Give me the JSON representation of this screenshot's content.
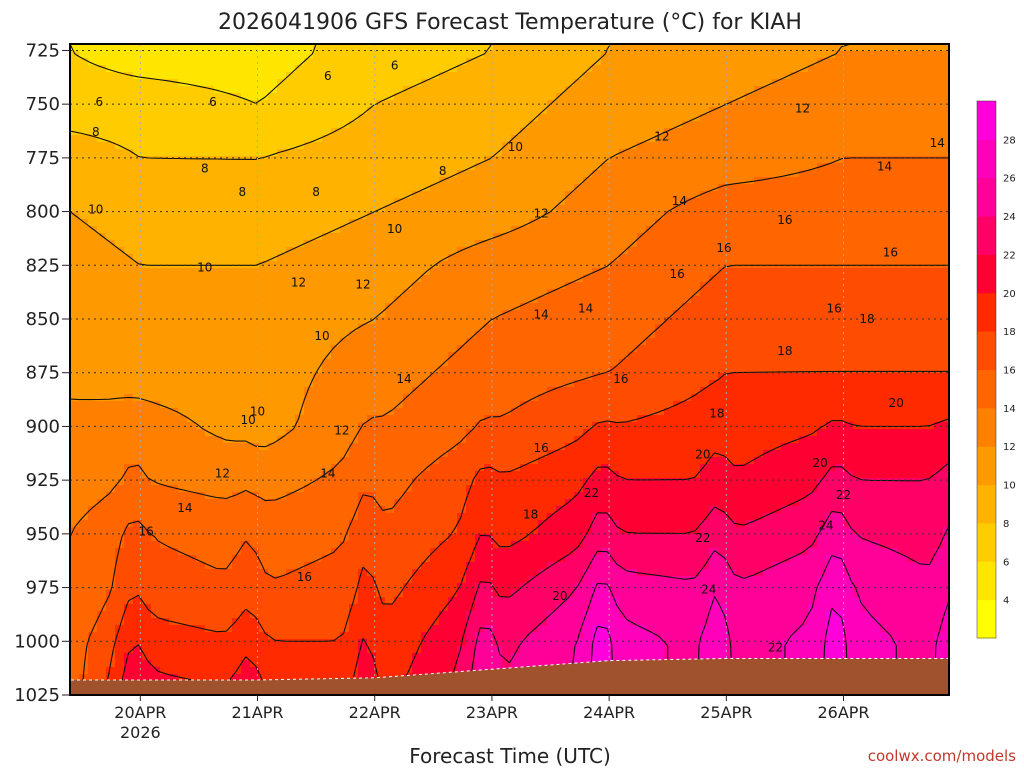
{
  "chart_data": {
    "type": "heatmap",
    "title": "2026041906 GFS Forecast Temperature (°C) for KIAH",
    "xlabel": "Forecast Time (UTC)",
    "ylabel": "",
    "credit": "coolwx.com/models",
    "x_ticks": [
      "20APR",
      "21APR",
      "22APR",
      "23APR",
      "24APR",
      "25APR",
      "26APR"
    ],
    "x_year": "2026",
    "x_range_days": [
      -0.6,
      6.9
    ],
    "y_ticks": [
      "725",
      "750",
      "775",
      "800",
      "825",
      "850",
      "875",
      "900",
      "925",
      "950",
      "975",
      "1000",
      "1025"
    ],
    "y_range_hpa": [
      722,
      1025
    ],
    "colorbar_ticks": [
      "4",
      "6",
      "8",
      "10",
      "12",
      "14",
      "16",
      "18",
      "20",
      "22",
      "24",
      "26",
      "28"
    ],
    "colorbar_colors": [
      "#ffff00",
      "#ffe600",
      "#ffcc00",
      "#ffb200",
      "#ff9900",
      "#ff8000",
      "#ff6600",
      "#ff4d00",
      "#ff2a00",
      "#ff0033",
      "#ff0066",
      "#ff0099",
      "#ff00bb",
      "#ff00dd"
    ],
    "levels": [
      2,
      4,
      6,
      8,
      10,
      12,
      14,
      16,
      18,
      20,
      22,
      24,
      26,
      28,
      30
    ],
    "contour_labels": [
      "6",
      "8",
      "10",
      "12",
      "14",
      "16",
      "18",
      "20",
      "22",
      "24"
    ],
    "profiles_note": "temperature (degC) by pressure level at each day",
    "profile_days": [
      -0.6,
      0.0,
      1.0,
      2.0,
      3.0,
      4.0,
      5.0,
      6.0,
      6.9
    ],
    "profile_levels_hpa": [
      725,
      750,
      775,
      800,
      825,
      850,
      875,
      900,
      925,
      950,
      975,
      1000,
      1025
    ],
    "profiles": [
      [
        6,
        7,
        9,
        10,
        11,
        11,
        12,
        12,
        13,
        14,
        14,
        15,
        15
      ],
      [
        5,
        7,
        8,
        9,
        10,
        11,
        11,
        13,
        14,
        16,
        17,
        19,
        21
      ],
      [
        5,
        6,
        8,
        9,
        10,
        11,
        11,
        11,
        13,
        15,
        16,
        18,
        20
      ],
      [
        7,
        8,
        9,
        10,
        11,
        12,
        13,
        14,
        15,
        16,
        17,
        18,
        19
      ],
      [
        8,
        9,
        10,
        11,
        13,
        14,
        15,
        16,
        18,
        19,
        21,
        23,
        24
      ],
      [
        10,
        11,
        12,
        13,
        14,
        15,
        16,
        18,
        20,
        22,
        25,
        27,
        27
      ],
      [
        11,
        12,
        13,
        15,
        16,
        17,
        18,
        19,
        20,
        22,
        24,
        25,
        25
      ],
      [
        12,
        13,
        14,
        15,
        16,
        17,
        18,
        20,
        22,
        24,
        26,
        27,
        27
      ],
      [
        12,
        13,
        14,
        15,
        16,
        17,
        18,
        20,
        22,
        23,
        24,
        25,
        25
      ]
    ],
    "surface_pressure_hpa": [
      1018,
      1018,
      1018,
      1017,
      1013,
      1009,
      1008,
      1008,
      1008
    ],
    "contour_label_positions": [
      {
        "text": "6",
        "day": -0.35,
        "hpa": 749
      },
      {
        "text": "6",
        "day": 0.62,
        "hpa": 749
      },
      {
        "text": "6",
        "day": 1.6,
        "hpa": 737
      },
      {
        "text": "6",
        "day": 2.17,
        "hpa": 732
      },
      {
        "text": "8",
        "day": -0.38,
        "hpa": 763
      },
      {
        "text": "8",
        "day": 0.55,
        "hpa": 780
      },
      {
        "text": "8",
        "day": 0.87,
        "hpa": 791
      },
      {
        "text": "8",
        "day": 1.5,
        "hpa": 791
      },
      {
        "text": "8",
        "day": 2.58,
        "hpa": 781
      },
      {
        "text": "10",
        "day": -0.38,
        "hpa": 799
      },
      {
        "text": "10",
        "day": 0.55,
        "hpa": 826
      },
      {
        "text": "10",
        "day": 1.55,
        "hpa": 858
      },
      {
        "text": "10",
        "day": 0.92,
        "hpa": 897
      },
      {
        "text": "10",
        "day": 1.0,
        "hpa": 893
      },
      {
        "text": "10",
        "day": 2.17,
        "hpa": 808
      },
      {
        "text": "10",
        "day": 3.2,
        "hpa": 770
      },
      {
        "text": "12",
        "day": 1.35,
        "hpa": 833
      },
      {
        "text": "12",
        "day": 1.9,
        "hpa": 834
      },
      {
        "text": "12",
        "day": 0.7,
        "hpa": 922
      },
      {
        "text": "12",
        "day": 1.72,
        "hpa": 902
      },
      {
        "text": "12",
        "day": 3.42,
        "hpa": 801
      },
      {
        "text": "12",
        "day": 4.45,
        "hpa": 765
      },
      {
        "text": "12",
        "day": 5.65,
        "hpa": 752
      },
      {
        "text": "14",
        "day": 0.38,
        "hpa": 938
      },
      {
        "text": "14",
        "day": 1.6,
        "hpa": 922
      },
      {
        "text": "14",
        "day": 2.25,
        "hpa": 878
      },
      {
        "text": "14",
        "day": 3.42,
        "hpa": 848
      },
      {
        "text": "14",
        "day": 3.8,
        "hpa": 845
      },
      {
        "text": "14",
        "day": 4.6,
        "hpa": 795
      },
      {
        "text": "14",
        "day": 6.35,
        "hpa": 779
      },
      {
        "text": "14",
        "day": 6.8,
        "hpa": 768
      },
      {
        "text": "16",
        "day": 0.05,
        "hpa": 949
      },
      {
        "text": "16",
        "day": 1.4,
        "hpa": 970
      },
      {
        "text": "16",
        "day": 3.42,
        "hpa": 910
      },
      {
        "text": "16",
        "day": 4.1,
        "hpa": 878
      },
      {
        "text": "16",
        "day": 4.58,
        "hpa": 829
      },
      {
        "text": "16",
        "day": 4.98,
        "hpa": 817
      },
      {
        "text": "16",
        "day": 5.5,
        "hpa": 804
      },
      {
        "text": "16",
        "day": 6.4,
        "hpa": 819
      },
      {
        "text": "16",
        "day": 5.92,
        "hpa": 845
      },
      {
        "text": "18",
        "day": 3.33,
        "hpa": 941
      },
      {
        "text": "18",
        "day": 6.2,
        "hpa": 850
      },
      {
        "text": "18",
        "day": 5.5,
        "hpa": 865
      },
      {
        "text": "18",
        "day": 4.92,
        "hpa": 894
      },
      {
        "text": "20",
        "day": 3.58,
        "hpa": 979
      },
      {
        "text": "20",
        "day": 4.8,
        "hpa": 913
      },
      {
        "text": "20",
        "day": 5.8,
        "hpa": 917
      },
      {
        "text": "20",
        "day": 6.45,
        "hpa": 889
      },
      {
        "text": "22",
        "day": 3.85,
        "hpa": 931
      },
      {
        "text": "22",
        "day": 4.8,
        "hpa": 952
      },
      {
        "text": "22",
        "day": 6.0,
        "hpa": 932
      },
      {
        "text": "22",
        "day": 5.42,
        "hpa": 1003
      },
      {
        "text": "24",
        "day": 4.85,
        "hpa": 976
      },
      {
        "text": "24",
        "day": 5.85,
        "hpa": 946
      }
    ]
  }
}
